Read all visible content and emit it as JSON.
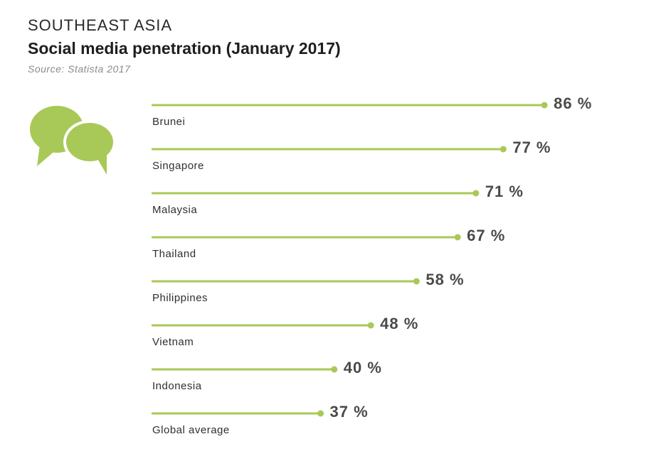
{
  "header": {
    "region": "SOUTHEAST ASIA",
    "title": "Social media penetration (January 2017)",
    "source": "Source: Statista 2017"
  },
  "colors": {
    "accent": "#a8c957",
    "text": "#3a3a3a"
  },
  "icon": "speech-bubbles-icon",
  "chart_data": {
    "type": "bar",
    "categories": [
      "Brunei",
      "Singapore",
      "Malaysia",
      "Thailand",
      "Philippines",
      "Vietnam",
      "Indonesia",
      "Global average"
    ],
    "values": [
      86,
      77,
      71,
      67,
      58,
      48,
      40,
      37
    ],
    "value_labels": [
      "86 %",
      "77 %",
      "71 %",
      "67 %",
      "58 %",
      "48 %",
      "40 %",
      "37 %"
    ],
    "unit": "%",
    "orientation": "horizontal",
    "style": "lollipop",
    "grid": false,
    "legend": "none"
  }
}
